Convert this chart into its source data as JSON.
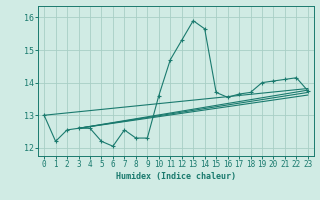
{
  "title": "",
  "xlabel": "Humidex (Indice chaleur)",
  "ylabel": "",
  "background_color": "#d0ebe4",
  "grid_color": "#a8cfc5",
  "line_color": "#1a7a6e",
  "xlim": [
    -0.5,
    23.5
  ],
  "ylim": [
    11.75,
    16.35
  ],
  "yticks": [
    12,
    13,
    14,
    15,
    16
  ],
  "xticks": [
    0,
    1,
    2,
    3,
    4,
    5,
    6,
    7,
    8,
    9,
    10,
    11,
    12,
    13,
    14,
    15,
    16,
    17,
    18,
    19,
    20,
    21,
    22,
    23
  ],
  "main_series": [
    [
      0,
      13.0
    ],
    [
      1,
      12.2
    ],
    [
      2,
      12.55
    ],
    [
      3,
      12.6
    ],
    [
      4,
      12.6
    ],
    [
      5,
      12.2
    ],
    [
      6,
      12.05
    ],
    [
      7,
      12.55
    ],
    [
      8,
      12.3
    ],
    [
      9,
      12.3
    ],
    [
      10,
      13.6
    ],
    [
      11,
      14.7
    ],
    [
      12,
      15.3
    ],
    [
      13,
      15.9
    ],
    [
      14,
      15.65
    ],
    [
      15,
      13.7
    ],
    [
      16,
      13.55
    ],
    [
      17,
      13.65
    ],
    [
      18,
      13.7
    ],
    [
      19,
      14.0
    ],
    [
      20,
      14.05
    ],
    [
      21,
      14.1
    ],
    [
      22,
      14.15
    ],
    [
      23,
      13.75
    ]
  ],
  "linear_lines": [
    [
      [
        0,
        13.0
      ],
      [
        23,
        13.82
      ]
    ],
    [
      [
        3,
        12.6
      ],
      [
        23,
        13.77
      ]
    ],
    [
      [
        3,
        12.6
      ],
      [
        23,
        13.7
      ]
    ],
    [
      [
        3,
        12.6
      ],
      [
        23,
        13.62
      ]
    ]
  ]
}
